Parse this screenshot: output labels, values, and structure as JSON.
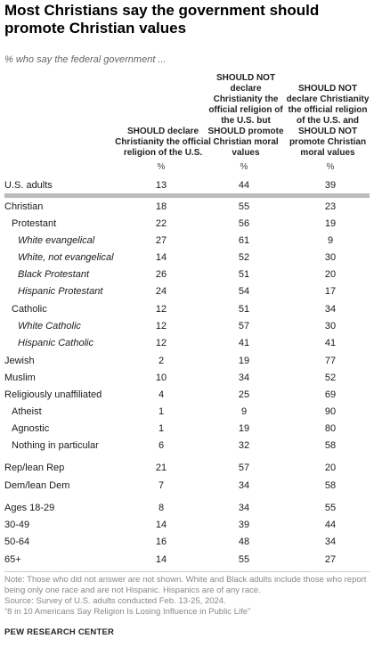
{
  "title": "Most Christians say the government should promote Christian values",
  "subtitle": "% who say the federal government ...",
  "columns": [
    "SHOULD declare Christianity the official religion of the U.S.",
    "SHOULD NOT declare Christianity the official religion of the U.S. but SHOULD promote Christian moral values",
    "SHOULD NOT declare Christianity the official religion of the U.S. and SHOULD NOT promote Christian moral values"
  ],
  "percent_symbol": "%",
  "chart_data": {
    "type": "table",
    "rows": [
      {
        "label": "U.S. adults",
        "values": [
          13,
          44,
          39
        ],
        "indent": 0
      },
      {
        "label": "Christian",
        "values": [
          18,
          55,
          23
        ],
        "indent": 0
      },
      {
        "label": "Protestant",
        "values": [
          22,
          56,
          19
        ],
        "indent": 1
      },
      {
        "label": "White evangelical",
        "values": [
          27,
          61,
          9
        ],
        "indent": 2
      },
      {
        "label": "White, not evangelical",
        "values": [
          14,
          52,
          30
        ],
        "indent": 2
      },
      {
        "label": "Black Protestant",
        "values": [
          26,
          51,
          20
        ],
        "indent": 2
      },
      {
        "label": "Hispanic Protestant",
        "values": [
          24,
          54,
          17
        ],
        "indent": 2
      },
      {
        "label": "Catholic",
        "values": [
          12,
          51,
          34
        ],
        "indent": 1
      },
      {
        "label": "White Catholic",
        "values": [
          12,
          57,
          30
        ],
        "indent": 2
      },
      {
        "label": "Hispanic Catholic",
        "values": [
          12,
          41,
          41
        ],
        "indent": 2
      },
      {
        "label": "Jewish",
        "values": [
          2,
          19,
          77
        ],
        "indent": 0
      },
      {
        "label": "Muslim",
        "values": [
          10,
          34,
          52
        ],
        "indent": 0
      },
      {
        "label": "Religiously unaffiliated",
        "values": [
          4,
          25,
          69
        ],
        "indent": 0
      },
      {
        "label": "Atheist",
        "values": [
          1,
          9,
          90
        ],
        "indent": 1
      },
      {
        "label": "Agnostic",
        "values": [
          1,
          19,
          80
        ],
        "indent": 1
      },
      {
        "label": "Nothing in particular",
        "values": [
          6,
          32,
          58
        ],
        "indent": 1
      },
      {
        "label": "Rep/lean Rep",
        "values": [
          21,
          57,
          20
        ],
        "indent": 0
      },
      {
        "label": "Dem/lean Dem",
        "values": [
          7,
          34,
          58
        ],
        "indent": 0
      },
      {
        "label": "Ages 18-29",
        "values": [
          8,
          34,
          55
        ],
        "indent": 0
      },
      {
        "label": "30-49",
        "values": [
          14,
          39,
          44
        ],
        "indent": 0
      },
      {
        "label": "50-64",
        "values": [
          16,
          48,
          34
        ],
        "indent": 0
      },
      {
        "label": "65+",
        "values": [
          14,
          55,
          27
        ],
        "indent": 0
      }
    ]
  },
  "note": "Note: Those who did not answer are not shown. White and Black adults include those who report being only one race and are not Hispanic. Hispanics are of any race.",
  "source": "Source: Survey of U.S. adults conducted Feb. 13-25, 2024.",
  "report": "“8 in 10 Americans Say Religion Is Losing Influence in Public Life”",
  "brand": "PEW RESEARCH CENTER"
}
